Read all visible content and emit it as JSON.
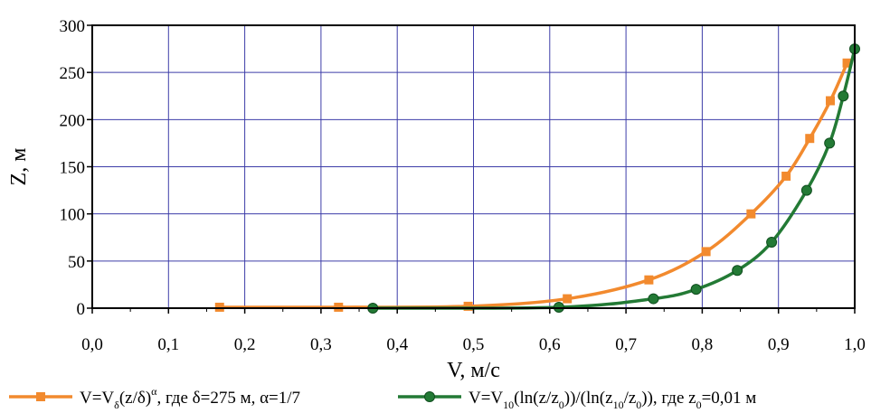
{
  "chart_data": {
    "type": "line",
    "xlabel": "V, м/с",
    "ylabel": "Z, м",
    "xlim": [
      0.0,
      1.0
    ],
    "ylim": [
      0,
      300
    ],
    "x_ticks": [
      "0,0",
      "0,1",
      "0,2",
      "0,3",
      "0,4",
      "0,5",
      "0,6",
      "0,7",
      "0,8",
      "0,9",
      "1,0"
    ],
    "y_ticks": [
      "0",
      "50",
      "100",
      "150",
      "200",
      "250",
      "300"
    ],
    "grid": true,
    "legend_position": "bottom",
    "colors": {
      "series_1": "#f28a2e",
      "series_2": "#237a35",
      "grid": "#3d3da8"
    },
    "series": [
      {
        "name": "V=Vδ(z/δ)α, где δ=275 м, α=1/7",
        "marker": "square",
        "legend_parts": {
          "a": "V=V",
          "sub1": "δ",
          "b": "(z/δ)",
          "sup1": "α",
          "c": ", где δ=275 м, α=1/7"
        },
        "points": [
          {
            "x": 0.167,
            "y": 1
          },
          {
            "x": 0.323,
            "y": 1
          },
          {
            "x": 0.493,
            "y": 2
          },
          {
            "x": 0.623,
            "y": 10
          },
          {
            "x": 0.73,
            "y": 30
          },
          {
            "x": 0.805,
            "y": 60
          },
          {
            "x": 0.864,
            "y": 100
          },
          {
            "x": 0.91,
            "y": 140
          },
          {
            "x": 0.941,
            "y": 180
          },
          {
            "x": 0.968,
            "y": 220
          },
          {
            "x": 0.99,
            "y": 260
          }
        ]
      },
      {
        "name": "V=V10(ln(z/z0))/(ln(z10/z0)), где z0=0,01 м",
        "marker": "circle",
        "legend_parts": {
          "a": "V=V",
          "sub1": "10",
          "b": "(ln(z/z",
          "sub2": "0",
          "c": "))/(ln(z",
          "sub3": "10",
          "d": "/z",
          "sub4": "0",
          "e": ")), где z",
          "sub5": "0",
          "f": "=0,01 м"
        },
        "points": [
          {
            "x": 0.368,
            "y": 0
          },
          {
            "x": 0.612,
            "y": 1
          },
          {
            "x": 0.736,
            "y": 10
          },
          {
            "x": 0.792,
            "y": 20
          },
          {
            "x": 0.846,
            "y": 40
          },
          {
            "x": 0.891,
            "y": 70
          },
          {
            "x": 0.937,
            "y": 125
          },
          {
            "x": 0.967,
            "y": 175
          },
          {
            "x": 0.985,
            "y": 225
          },
          {
            "x": 1.0,
            "y": 275
          }
        ]
      }
    ]
  }
}
